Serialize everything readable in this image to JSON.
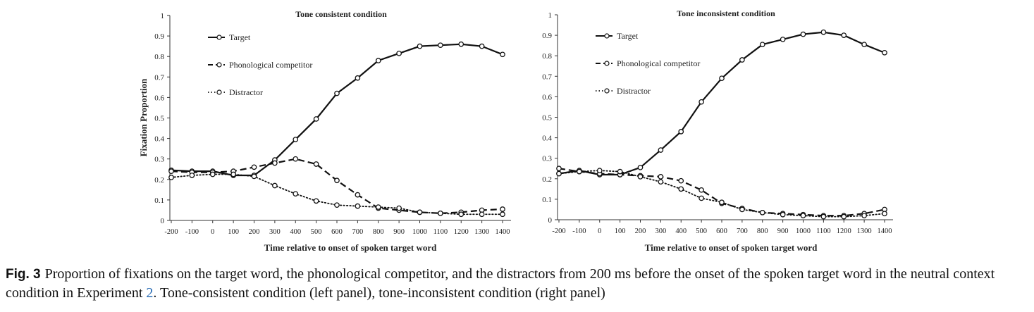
{
  "chart_data": [
    {
      "type": "line",
      "title": "Tone consistent condition",
      "xlabel": "Time relative to onset of spoken target word",
      "ylabel": "Fixation Proportion",
      "ylim": [
        0,
        1
      ],
      "y_ticks": [
        "0",
        "0.1",
        "0.2",
        "0.3",
        "0.4",
        "0.5",
        "0.6",
        "0.7",
        "0.8",
        "0.9",
        "1"
      ],
      "x": [
        -200,
        -100,
        0,
        100,
        200,
        300,
        400,
        500,
        600,
        700,
        800,
        900,
        1000,
        1100,
        1200,
        1300,
        1400
      ],
      "x_ticks": [
        "-200",
        "-100",
        "0",
        "100",
        "200",
        "300",
        "400",
        "500",
        "600",
        "700",
        "800",
        "900",
        "1000",
        "1100",
        "1200",
        "1300",
        "1400"
      ],
      "grid": false,
      "legend_position": "top-left",
      "series": [
        {
          "name": "Target",
          "style": "solid",
          "values": [
            0.245,
            0.24,
            0.24,
            0.22,
            0.22,
            0.295,
            0.395,
            0.495,
            0.62,
            0.695,
            0.78,
            0.815,
            0.85,
            0.855,
            0.86,
            0.85,
            0.81
          ]
        },
        {
          "name": "Phonological competitor",
          "style": "dashed",
          "values": [
            0.24,
            0.235,
            0.235,
            0.24,
            0.26,
            0.28,
            0.3,
            0.275,
            0.195,
            0.125,
            0.06,
            0.05,
            0.04,
            0.035,
            0.04,
            0.05,
            0.055
          ]
        },
        {
          "name": "Distractor",
          "style": "dotted",
          "values": [
            0.21,
            0.22,
            0.225,
            0.225,
            0.215,
            0.17,
            0.13,
            0.095,
            0.075,
            0.07,
            0.065,
            0.06,
            0.04,
            0.035,
            0.03,
            0.03,
            0.03
          ]
        }
      ]
    },
    {
      "type": "line",
      "title": "Tone inconsistent condition",
      "xlabel": "Time relative to onset of spoken target word",
      "ylabel": "",
      "ylim": [
        0,
        1
      ],
      "y_ticks": [
        "0",
        "0.1",
        "0.2",
        "0.3",
        "0.4",
        "0.5",
        "0.6",
        "0.7",
        "0.8",
        "0.9",
        "1"
      ],
      "x": [
        -200,
        -100,
        0,
        100,
        200,
        300,
        400,
        500,
        600,
        700,
        800,
        900,
        1000,
        1100,
        1200,
        1300,
        1400
      ],
      "x_ticks": [
        "-200",
        "-100",
        "0",
        "100",
        "200",
        "300",
        "400",
        "500",
        "600",
        "700",
        "800",
        "900",
        "1000",
        "1100",
        "1200",
        "1300",
        "1400"
      ],
      "grid": false,
      "legend_position": "top-left",
      "series": [
        {
          "name": "Target",
          "style": "solid",
          "values": [
            0.225,
            0.24,
            0.22,
            0.22,
            0.255,
            0.34,
            0.43,
            0.575,
            0.69,
            0.78,
            0.855,
            0.88,
            0.905,
            0.915,
            0.9,
            0.855,
            0.815
          ]
        },
        {
          "name": "Phonological competitor",
          "style": "dashed",
          "values": [
            0.25,
            0.235,
            0.225,
            0.22,
            0.215,
            0.21,
            0.19,
            0.145,
            0.08,
            0.055,
            0.035,
            0.03,
            0.025,
            0.02,
            0.02,
            0.03,
            0.05
          ]
        },
        {
          "name": "Distractor",
          "style": "dotted",
          "values": [
            0.225,
            0.235,
            0.24,
            0.235,
            0.21,
            0.185,
            0.15,
            0.105,
            0.085,
            0.05,
            0.035,
            0.025,
            0.02,
            0.015,
            0.015,
            0.02,
            0.03
          ]
        }
      ]
    }
  ],
  "caption": {
    "label": "Fig. 3",
    "text_before_ref": "Proportion of fixations on the target word, the phonological competitor, and the distractors from 200 ms before the onset of the spoken target word in the neutral context condition in Experiment",
    "ref": "2",
    "text_after_ref": ". Tone-consistent condition (left panel), tone-inconsistent condition (right panel)"
  },
  "colors": {
    "line": "#111111",
    "marker_fill": "#ffffff",
    "axis": "#333333",
    "caption_ref": "#2a6db5"
  }
}
